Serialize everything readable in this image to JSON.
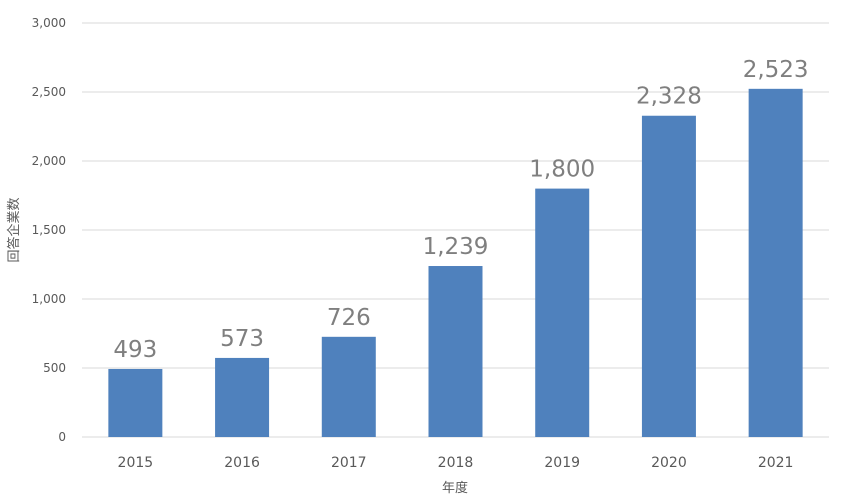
{
  "chart_data": {
    "type": "bar",
    "title": "",
    "xlabel": "年度",
    "ylabel": "回答企業数",
    "categories": [
      "2015",
      "2016",
      "2017",
      "2018",
      "2019",
      "2020",
      "2021"
    ],
    "values": [
      493,
      573,
      726,
      1239,
      1800,
      2328,
      2523
    ],
    "data_labels": [
      "493",
      "573",
      "726",
      "1,239",
      "1,800",
      "2,328",
      "2,523"
    ],
    "y_ticks": [
      0,
      500,
      1000,
      1500,
      2000,
      2500,
      3000
    ],
    "y_tick_labels": [
      "0",
      "500",
      "1,000",
      "1,500",
      "2,000",
      "2,500",
      "3,000"
    ],
    "ylim": [
      0,
      3000
    ],
    "grid": true,
    "legend": "none",
    "bar_color": "#4f81bd"
  }
}
